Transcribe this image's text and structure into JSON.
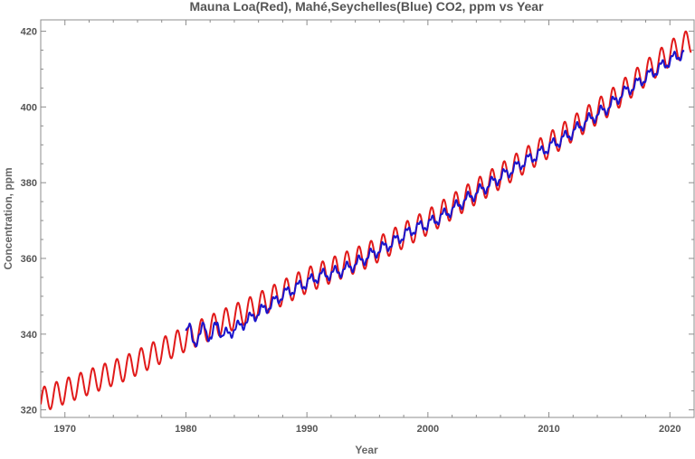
{
  "chart_data": {
    "type": "line",
    "title": "Mauna Loa(Red), Mahé,Seychelles(Blue) CO2, ppm vs Year",
    "xlabel": "Year",
    "ylabel": "Concentration, ppm",
    "xlim": [
      1968,
      2022
    ],
    "ylim": [
      318,
      423
    ],
    "xticks": [
      1970,
      1980,
      1990,
      2000,
      2010,
      2020
    ],
    "yticks": [
      320,
      340,
      360,
      380,
      400,
      420
    ],
    "grid": false,
    "series": [
      {
        "color": "#e11a1a",
        "x_start": 1968.0,
        "x_end": 2021.75,
        "trend_points": [
          [
            1968,
            322.5
          ],
          [
            1975,
            331.0
          ],
          [
            1980,
            338.8
          ],
          [
            1985,
            346.0
          ],
          [
            1990,
            354.2
          ],
          [
            1995,
            360.8
          ],
          [
            2000,
            369.6
          ],
          [
            2005,
            379.7
          ],
          [
            2010,
            389.9
          ],
          [
            2015,
            401.0
          ],
          [
            2020,
            414.2
          ],
          [
            2021.75,
            417.5
          ]
        ],
        "seasonal_amplitude": 3.3
      },
      {
        "color": "#1a14cc",
        "x_start": 1980.0,
        "x_end": 2021.2,
        "points": [
          [
            1980.0,
            341.3
          ],
          [
            1980.1,
            340.5
          ],
          [
            1980.3,
            341.8
          ],
          [
            1980.5,
            338.9
          ],
          [
            1980.8,
            338.2
          ],
          [
            1981.2,
            339.6
          ],
          [
            1981.5,
            342.6
          ],
          [
            1981.8,
            340.2
          ],
          [
            1982.1,
            338.4
          ],
          [
            1982.4,
            341.8
          ],
          [
            1982.6,
            343.3
          ],
          [
            1983.0,
            339.4
          ],
          [
            1984.0,
            341.2
          ],
          [
            1985.0,
            343.4
          ],
          [
            1986.0,
            345.7
          ],
          [
            1987.0,
            347.7
          ],
          [
            1988.0,
            350.4
          ],
          [
            1989.0,
            352.1
          ],
          [
            1990.0,
            353.6
          ],
          [
            1991.0,
            355.4
          ],
          [
            1992.0,
            356.0
          ],
          [
            1993.0,
            356.9
          ],
          [
            1994.0,
            358.5
          ],
          [
            1995.0,
            360.4
          ],
          [
            1996.0,
            362.3
          ],
          [
            1997.0,
            364.0
          ],
          [
            1998.0,
            366.1
          ],
          [
            1999.0,
            368.0
          ],
          [
            2000.0,
            369.1
          ],
          [
            2001.0,
            370.8
          ],
          [
            2002.0,
            372.9
          ],
          [
            2003.0,
            375.2
          ],
          [
            2004.0,
            377.3
          ],
          [
            2005.0,
            379.3
          ],
          [
            2006.0,
            381.5
          ],
          [
            2007.0,
            383.5
          ],
          [
            2008.0,
            385.6
          ],
          [
            2009.0,
            387.3
          ],
          [
            2010.0,
            389.5
          ],
          [
            2011.0,
            391.3
          ],
          [
            2012.0,
            393.4
          ],
          [
            2013.0,
            396.0
          ],
          [
            2014.0,
            398.0
          ],
          [
            2015.0,
            400.2
          ],
          [
            2016.0,
            403.3
          ],
          [
            2017.0,
            405.5
          ],
          [
            2018.0,
            407.8
          ],
          [
            2019.0,
            410.0
          ],
          [
            2020.0,
            412.3
          ],
          [
            2021.0,
            414.2
          ]
        ],
        "seasonal_amplitude": 1.3
      }
    ]
  }
}
